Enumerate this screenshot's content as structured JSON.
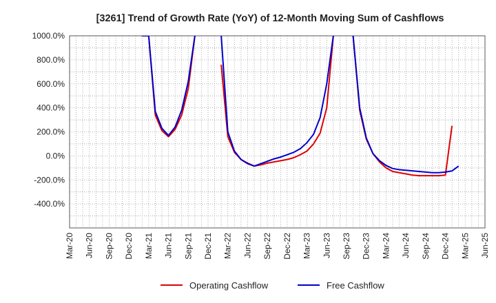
{
  "chart_data": {
    "type": "line",
    "title": "[3261]  Trend of Growth Rate (YoY) of 12-Month Moving Sum of Cashflows",
    "xlabel": "",
    "ylabel": "",
    "ylim": [
      -600,
      1000
    ],
    "y_ticks": [
      1000,
      800,
      600,
      400,
      200,
      0,
      -200,
      -400
    ],
    "y_tick_labels": [
      "1000.0%",
      "800.0%",
      "600.0%",
      "400.0%",
      "200.0%",
      "0.0%",
      "-200.0%",
      "-400.0%"
    ],
    "x_tick_labels": [
      "Mar-20",
      "Jun-20",
      "Sep-20",
      "Dec-20",
      "Mar-21",
      "Jun-21",
      "Sep-21",
      "Dec-21",
      "Mar-22",
      "Jun-22",
      "Sep-22",
      "Dec-22",
      "Mar-23",
      "Jun-23",
      "Sep-23",
      "Dec-23",
      "Mar-24",
      "Jun-24",
      "Sep-24",
      "Dec-24",
      "Mar-25",
      "Jun-25"
    ],
    "grid": true,
    "legend_position": "bottom-center",
    "colors": {
      "operating": "#dd0000",
      "free": "#0000cc"
    },
    "series": [
      {
        "name": "Operating Cashflow",
        "color": "#dd0000",
        "points": [
          [
            "Jan-21",
            1200
          ],
          [
            "Feb-21",
            1000
          ],
          [
            "Mar-21",
            1000
          ],
          [
            "Apr-21",
            340
          ],
          [
            "May-21",
            210
          ],
          [
            "Jun-21",
            160
          ],
          [
            "Jul-21",
            220
          ],
          [
            "Aug-21",
            340
          ],
          [
            "Sep-21",
            560
          ],
          [
            "Oct-21",
            1000
          ],
          [
            "Nov-21",
            1200
          ],
          [
            "Feb-22",
            760
          ],
          [
            "Mar-22",
            160
          ],
          [
            "Apr-22",
            30
          ],
          [
            "May-22",
            -30
          ],
          [
            "Jun-22",
            -60
          ],
          [
            "Jul-22",
            -85
          ],
          [
            "Aug-22",
            -75
          ],
          [
            "Sep-22",
            -60
          ],
          [
            "Oct-22",
            -50
          ],
          [
            "Nov-22",
            -40
          ],
          [
            "Dec-22",
            -30
          ],
          [
            "Jan-23",
            -15
          ],
          [
            "Feb-23",
            10
          ],
          [
            "Mar-23",
            40
          ],
          [
            "Apr-23",
            100
          ],
          [
            "May-23",
            190
          ],
          [
            "Jun-23",
            400
          ],
          [
            "Jul-23",
            1000
          ],
          [
            "Aug-23",
            1200
          ],
          [
            "Sep-23",
            1200
          ],
          [
            "Oct-23",
            1000
          ],
          [
            "Nov-23",
            380
          ],
          [
            "Dec-23",
            140
          ],
          [
            "Jan-24",
            20
          ],
          [
            "Feb-24",
            -50
          ],
          [
            "Mar-24",
            -100
          ],
          [
            "Apr-24",
            -130
          ],
          [
            "May-24",
            -140
          ],
          [
            "Jun-24",
            -150
          ],
          [
            "Jul-24",
            -160
          ],
          [
            "Aug-24",
            -165
          ],
          [
            "Sep-24",
            -165
          ],
          [
            "Oct-24",
            -165
          ],
          [
            "Nov-24",
            -165
          ],
          [
            "Dec-24",
            -160
          ],
          [
            "Jan-25",
            250
          ]
        ]
      },
      {
        "name": "Free Cashflow",
        "color": "#0000cc",
        "points": [
          [
            "Jan-21",
            1200
          ],
          [
            "Feb-21",
            1000
          ],
          [
            "Mar-21",
            1000
          ],
          [
            "Apr-21",
            370
          ],
          [
            "May-21",
            230
          ],
          [
            "Jun-21",
            170
          ],
          [
            "Jul-21",
            240
          ],
          [
            "Aug-21",
            380
          ],
          [
            "Sep-21",
            620
          ],
          [
            "Oct-21",
            1000
          ],
          [
            "Nov-21",
            1200
          ],
          [
            "Feb-22",
            1000
          ],
          [
            "Mar-22",
            200
          ],
          [
            "Apr-22",
            40
          ],
          [
            "May-22",
            -30
          ],
          [
            "Jun-22",
            -65
          ],
          [
            "Jul-22",
            -85
          ],
          [
            "Aug-22",
            -65
          ],
          [
            "Sep-22",
            -45
          ],
          [
            "Oct-22",
            -25
          ],
          [
            "Nov-22",
            -10
          ],
          [
            "Dec-22",
            10
          ],
          [
            "Jan-23",
            30
          ],
          [
            "Feb-23",
            60
          ],
          [
            "Mar-23",
            110
          ],
          [
            "Apr-23",
            180
          ],
          [
            "May-23",
            320
          ],
          [
            "Jun-23",
            600
          ],
          [
            "Jul-23",
            1000
          ],
          [
            "Aug-23",
            1200
          ],
          [
            "Sep-23",
            1200
          ],
          [
            "Oct-23",
            1000
          ],
          [
            "Nov-23",
            400
          ],
          [
            "Dec-23",
            150
          ],
          [
            "Jan-24",
            20
          ],
          [
            "Feb-24",
            -40
          ],
          [
            "Mar-24",
            -80
          ],
          [
            "Apr-24",
            -105
          ],
          [
            "May-24",
            -115
          ],
          [
            "Jun-24",
            -120
          ],
          [
            "Jul-24",
            -125
          ],
          [
            "Aug-24",
            -130
          ],
          [
            "Sep-24",
            -135
          ],
          [
            "Oct-24",
            -140
          ],
          [
            "Nov-24",
            -140
          ],
          [
            "Dec-24",
            -135
          ],
          [
            "Jan-25",
            -125
          ],
          [
            "Feb-25",
            -85
          ]
        ]
      }
    ]
  }
}
